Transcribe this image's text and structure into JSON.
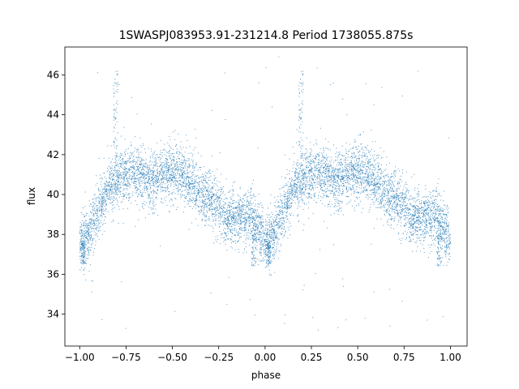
{
  "chart_data": {
    "type": "scatter",
    "title": "1SWASPJ083953.91-231214.8 Period 1738055.875s",
    "xlabel": "phase",
    "ylabel": "flux",
    "xlim": [
      -1.08,
      1.09
    ],
    "ylim": [
      32.4,
      47.4
    ],
    "x_ticks": [
      -1.0,
      -0.75,
      -0.5,
      -0.25,
      0.0,
      0.25,
      0.5,
      0.75,
      1.0
    ],
    "x_tick_labels": [
      "−1.00",
      "−0.75",
      "−0.50",
      "−0.25",
      "0.00",
      "0.25",
      "0.50",
      "0.75",
      "1.00"
    ],
    "y_ticks": [
      34,
      36,
      38,
      40,
      42,
      44,
      46
    ],
    "y_tick_labels": [
      "34",
      "36",
      "38",
      "40",
      "42",
      "44",
      "46"
    ],
    "grid": false,
    "legend": "none",
    "marker_color": "#1f77b4",
    "series": [
      {
        "phase_profile": [
          [
            0.0,
            37.6
          ],
          [
            0.05,
            38.0
          ],
          [
            0.1,
            39.2
          ],
          [
            0.15,
            40.2
          ],
          [
            0.2,
            40.8
          ],
          [
            0.25,
            41.0
          ],
          [
            0.3,
            41.1
          ],
          [
            0.35,
            40.8
          ],
          [
            0.4,
            40.6
          ],
          [
            0.45,
            41.0
          ],
          [
            0.5,
            41.2
          ],
          [
            0.55,
            41.0
          ],
          [
            0.6,
            40.5
          ],
          [
            0.65,
            40.2
          ],
          [
            0.7,
            39.8
          ],
          [
            0.75,
            39.3
          ],
          [
            0.8,
            38.8
          ],
          [
            0.85,
            38.8
          ],
          [
            0.9,
            39.0
          ],
          [
            0.95,
            38.6
          ],
          [
            1.0,
            37.6
          ]
        ],
        "scatter": 0.8,
        "point_count": 3600,
        "outlier_count": 90,
        "outlier_range": [
          33.0,
          47.0
        ],
        "features": [
          {
            "x": 0.195,
            "y_max": 46.4
          },
          {
            "x": 0.94,
            "y_min": 36.4
          },
          {
            "x": 0.02,
            "y_min": 36.5
          }
        ]
      }
    ]
  }
}
